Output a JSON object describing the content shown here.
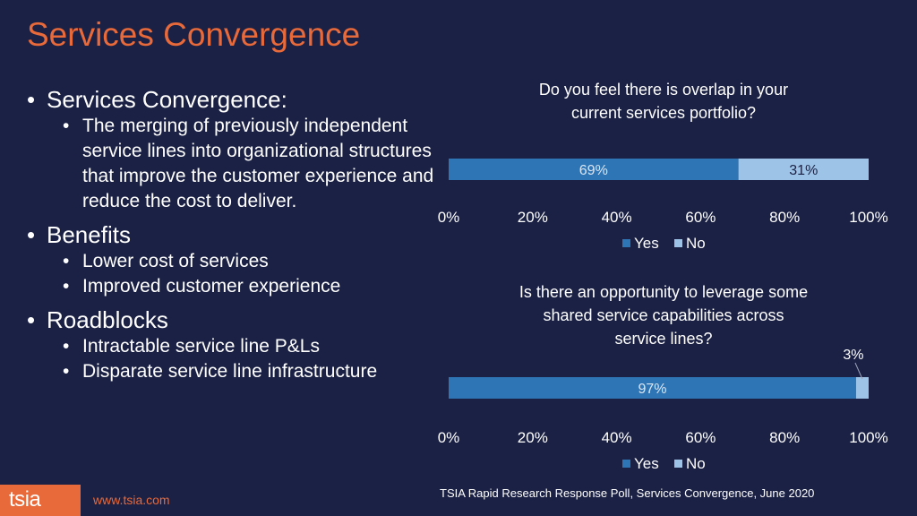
{
  "slide": {
    "title": "Services Convergence"
  },
  "bullets": [
    {
      "level": 1,
      "text": "Services Convergence:"
    },
    {
      "level": 2,
      "text": "The merging of previously independent service lines into organizational structures that improve the customer experience and reduce the cost to deliver."
    },
    {
      "level": 1,
      "text": "Benefits"
    },
    {
      "level": 2,
      "text": "Lower cost of services"
    },
    {
      "level": 2,
      "text": "Improved customer experience"
    },
    {
      "level": 1,
      "text": "Roadblocks"
    },
    {
      "level": 2,
      "text": "Intractable service line P&Ls"
    },
    {
      "level": 2,
      "text": "Disparate service line infrastructure"
    }
  ],
  "footer": {
    "logo_text": "tsia",
    "url": "www.tsia.com",
    "source": "TSIA Rapid Research Response Poll, Services Convergence, June 2020"
  },
  "chart_data": [
    {
      "type": "bar",
      "orientation": "horizontal",
      "stacked": true,
      "title": [
        "Do you feel there is overlap in your",
        "current services portfolio?"
      ],
      "series": [
        {
          "name": "Yes",
          "values": [
            69
          ],
          "label": "69%",
          "color": "#2e75b6"
        },
        {
          "name": "No",
          "values": [
            31
          ],
          "label": "31%",
          "color": "#9dc3e6"
        }
      ],
      "xlim": [
        0,
        100
      ],
      "xticks": [
        "0%",
        "20%",
        "40%",
        "60%",
        "80%",
        "100%"
      ],
      "legend": "bottom"
    },
    {
      "type": "bar",
      "orientation": "horizontal",
      "stacked": true,
      "title": [
        "Is there an opportunity to leverage some",
        "shared service capabilities across",
        "service lines?"
      ],
      "series": [
        {
          "name": "Yes",
          "values": [
            97
          ],
          "label": "97%",
          "color": "#2e75b6"
        },
        {
          "name": "No",
          "values": [
            3
          ],
          "label": "3%",
          "color": "#9dc3e6"
        }
      ],
      "xlim": [
        0,
        100
      ],
      "xticks": [
        "0%",
        "20%",
        "40%",
        "60%",
        "80%",
        "100%"
      ],
      "legend": "bottom"
    }
  ]
}
